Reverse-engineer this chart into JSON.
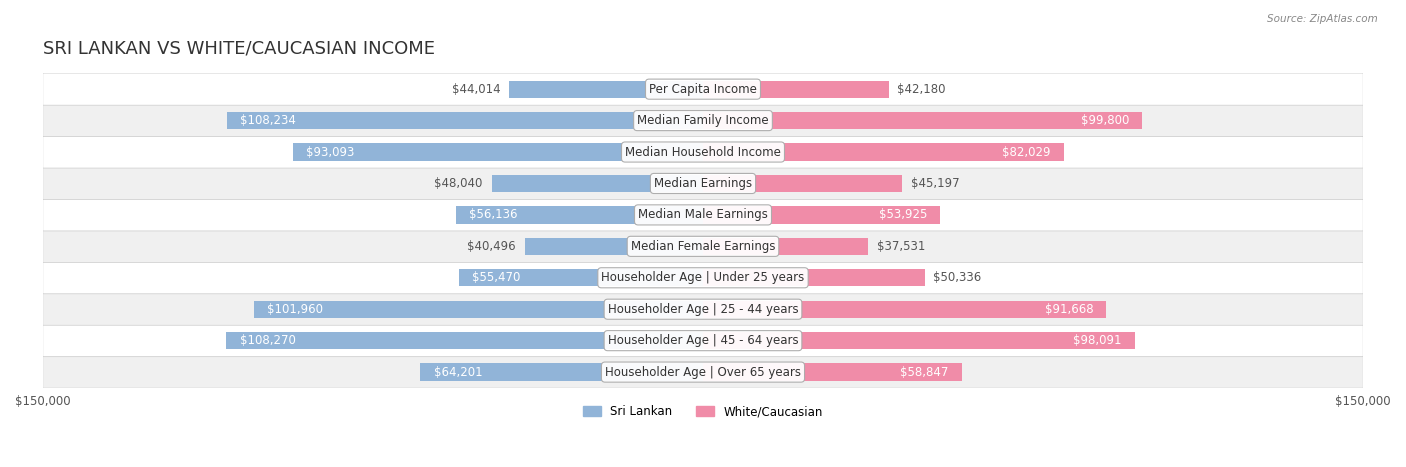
{
  "title": "SRI LANKAN VS WHITE/CAUCASIAN INCOME",
  "source": "Source: ZipAtlas.com",
  "categories": [
    "Per Capita Income",
    "Median Family Income",
    "Median Household Income",
    "Median Earnings",
    "Median Male Earnings",
    "Median Female Earnings",
    "Householder Age | Under 25 years",
    "Householder Age | 25 - 44 years",
    "Householder Age | 45 - 64 years",
    "Householder Age | Over 65 years"
  ],
  "sri_lankan": [
    44014,
    108234,
    93093,
    48040,
    56136,
    40496,
    55470,
    101960,
    108270,
    64201
  ],
  "white_caucasian": [
    42180,
    99800,
    82029,
    45197,
    53925,
    37531,
    50336,
    91668,
    98091,
    58847
  ],
  "max_value": 150000,
  "sri_lankan_color": "#91b4d8",
  "white_caucasian_color": "#f08ca8",
  "sri_lankan_label": "Sri Lankan",
  "white_caucasian_label": "White/Caucasian",
  "bar_height": 0.55,
  "bg_row_color": "#f0f0f0",
  "bg_row_color2": "#ffffff",
  "x_tick_labels": [
    "$150,000",
    "$150,000"
  ],
  "title_fontsize": 13,
  "label_fontsize": 8.5,
  "value_fontsize": 8.5,
  "category_fontsize": 8.5
}
